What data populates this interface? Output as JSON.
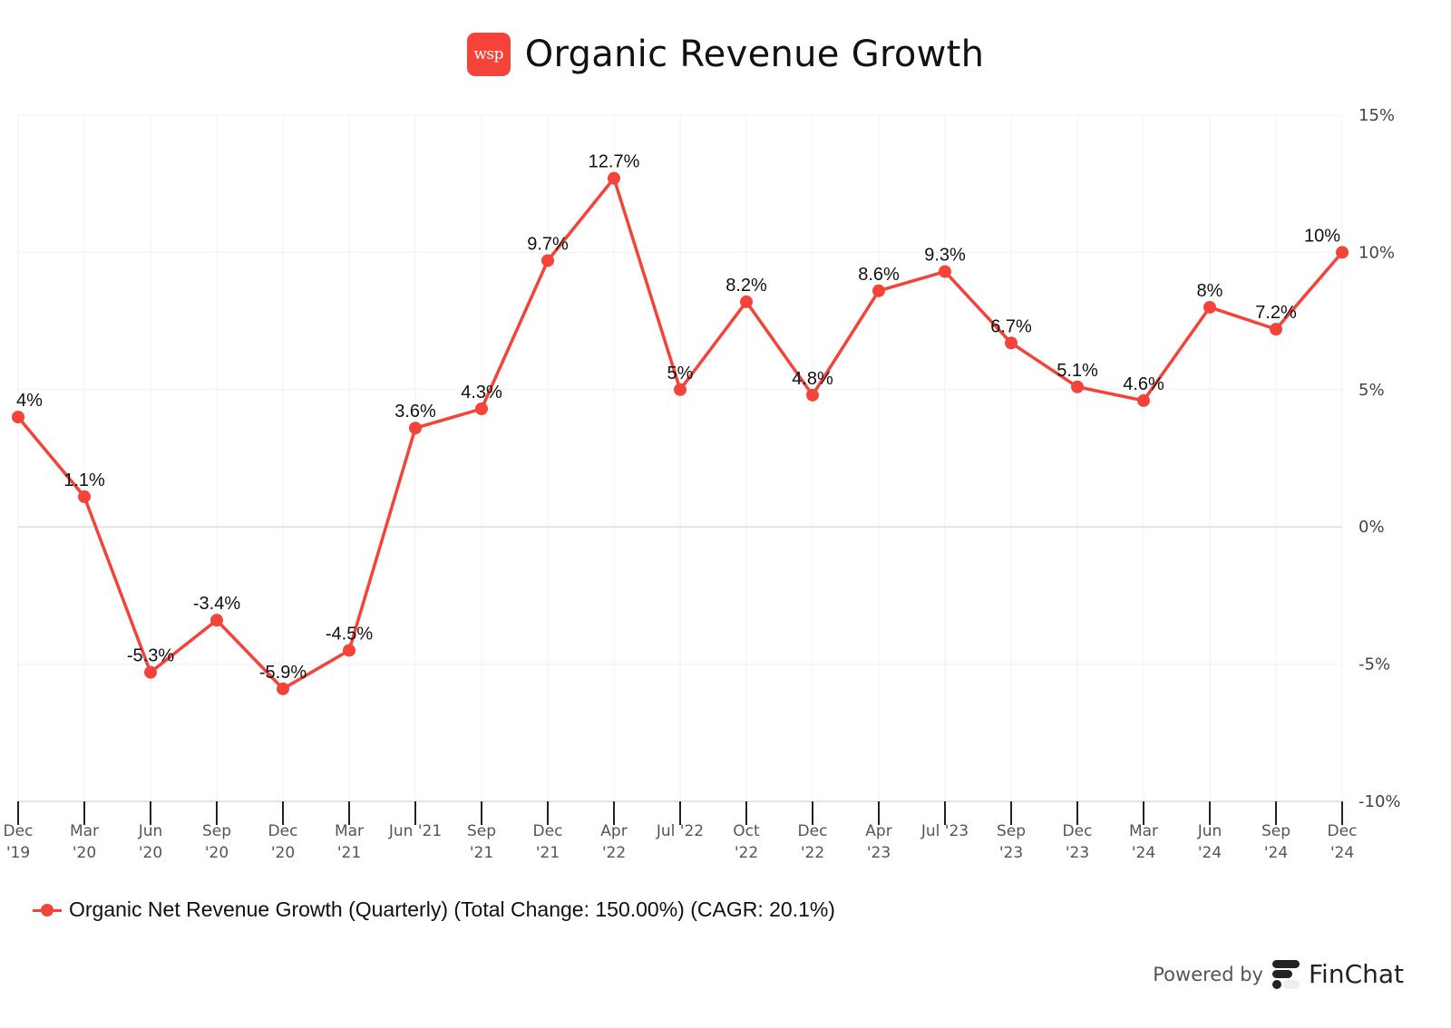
{
  "header": {
    "logo_text": "wsp",
    "title": "Organic Revenue Growth"
  },
  "footer": {
    "powered_by": "Powered by",
    "brand": "FinChat"
  },
  "legend": {
    "label": "Organic Net Revenue Growth (Quarterly) (Total Change: 150.00%) (CAGR: 20.1%)"
  },
  "chart_data": {
    "type": "line",
    "title": "Organic Revenue Growth",
    "xlabel": "",
    "ylabel": "",
    "ylim": [
      -10,
      15
    ],
    "yticks": [
      15,
      10,
      5,
      0,
      -5,
      -10
    ],
    "ytick_labels": [
      "15%",
      "10%",
      "5%",
      "0%",
      "-5%",
      "-10%"
    ],
    "y_axis_position": "right",
    "grid": true,
    "legend_position": "bottom-left",
    "color": "#f5433a",
    "categories": [
      [
        "Dec",
        "'19"
      ],
      [
        "Mar",
        "'20"
      ],
      [
        "Jun",
        "'20"
      ],
      [
        "Sep",
        "'20"
      ],
      [
        "Dec",
        "'20"
      ],
      [
        "Mar",
        "'21"
      ],
      [
        "Jun '21",
        ""
      ],
      [
        "Sep",
        "'21"
      ],
      [
        "Dec",
        "'21"
      ],
      [
        "Apr",
        "'22"
      ],
      [
        "Jul '22",
        ""
      ],
      [
        "Oct",
        "'22"
      ],
      [
        "Dec",
        "'22"
      ],
      [
        "Apr",
        "'23"
      ],
      [
        "Jul '23",
        ""
      ],
      [
        "Sep",
        "'23"
      ],
      [
        "Dec",
        "'23"
      ],
      [
        "Mar",
        "'24"
      ],
      [
        "Jun",
        "'24"
      ],
      [
        "Sep",
        "'24"
      ],
      [
        "Dec",
        "'24"
      ]
    ],
    "series": [
      {
        "name": "Organic Net Revenue Growth (Quarterly)",
        "values": [
          4,
          1.1,
          -5.3,
          -3.4,
          -5.9,
          -4.5,
          3.6,
          4.3,
          9.7,
          12.7,
          5,
          8.2,
          4.8,
          8.6,
          9.3,
          6.7,
          5.1,
          4.6,
          8,
          7.2,
          10
        ],
        "labels": [
          "4%",
          "1.1%",
          "-5.3%",
          "-3.4%",
          "-5.9%",
          "-4.5%",
          "3.6%",
          "4.3%",
          "9.7%",
          "12.7%",
          "5%",
          "8.2%",
          "4.8%",
          "8.6%",
          "9.3%",
          "6.7%",
          "5.1%",
          "4.6%",
          "8%",
          "7.2%",
          "10%"
        ]
      }
    ]
  }
}
